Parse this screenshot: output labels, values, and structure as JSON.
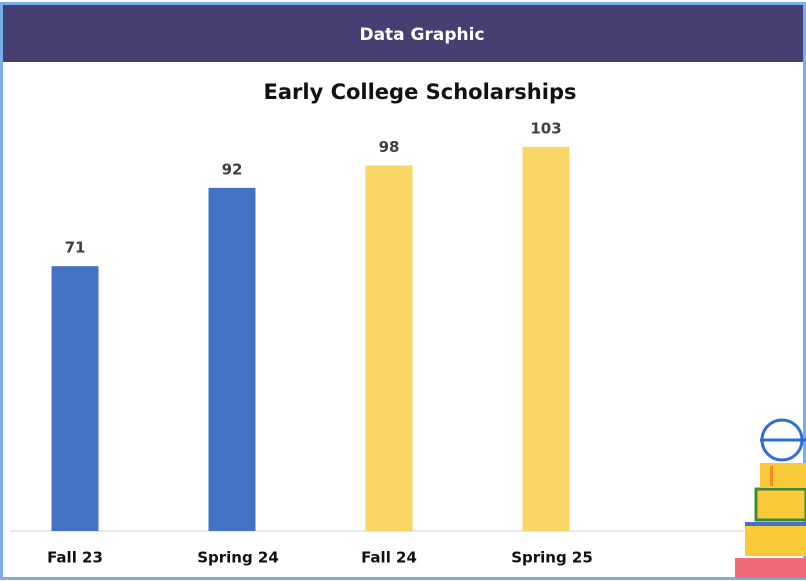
{
  "header": {
    "title": "Data Graphic"
  },
  "chart_data": {
    "type": "bar",
    "title": "Early College Scholarships",
    "categories": [
      "Fall 23",
      "Spring 24",
      "Fall 24",
      "Spring 25"
    ],
    "values": [
      71,
      92,
      98,
      103
    ],
    "colors": [
      "#4472c4",
      "#4472c4",
      "#f9d665",
      "#f9d665"
    ],
    "grid": false
  }
}
